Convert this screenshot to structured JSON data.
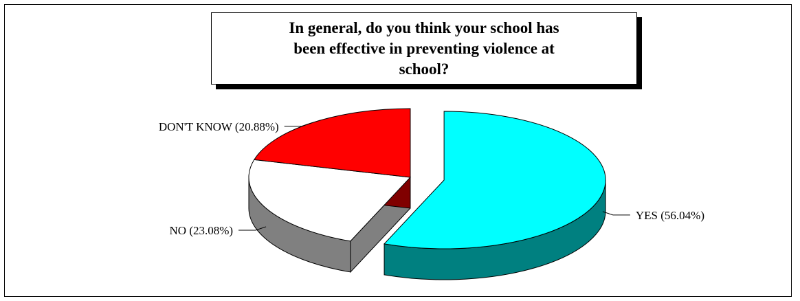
{
  "chart_data": {
    "type": "pie",
    "title": "In general, do you think your school has been effective in preventing violence at school?",
    "slices": [
      {
        "label": "YES (56.04%)",
        "category": "YES",
        "value": 56.04,
        "color": "#00ffff",
        "side_color": "#008080",
        "exploded": true
      },
      {
        "label": "NO (23.08%)",
        "category": "NO",
        "value": 23.08,
        "color": "#ffffff",
        "side_color": "#808080",
        "exploded": false
      },
      {
        "label": "DON'T KNOW (20.88%)",
        "category": "DON'T KNOW",
        "value": 20.88,
        "color": "#ff0000",
        "side_color": "#800000",
        "exploded": false
      }
    ],
    "legend": "none",
    "style": "3d-pie"
  }
}
